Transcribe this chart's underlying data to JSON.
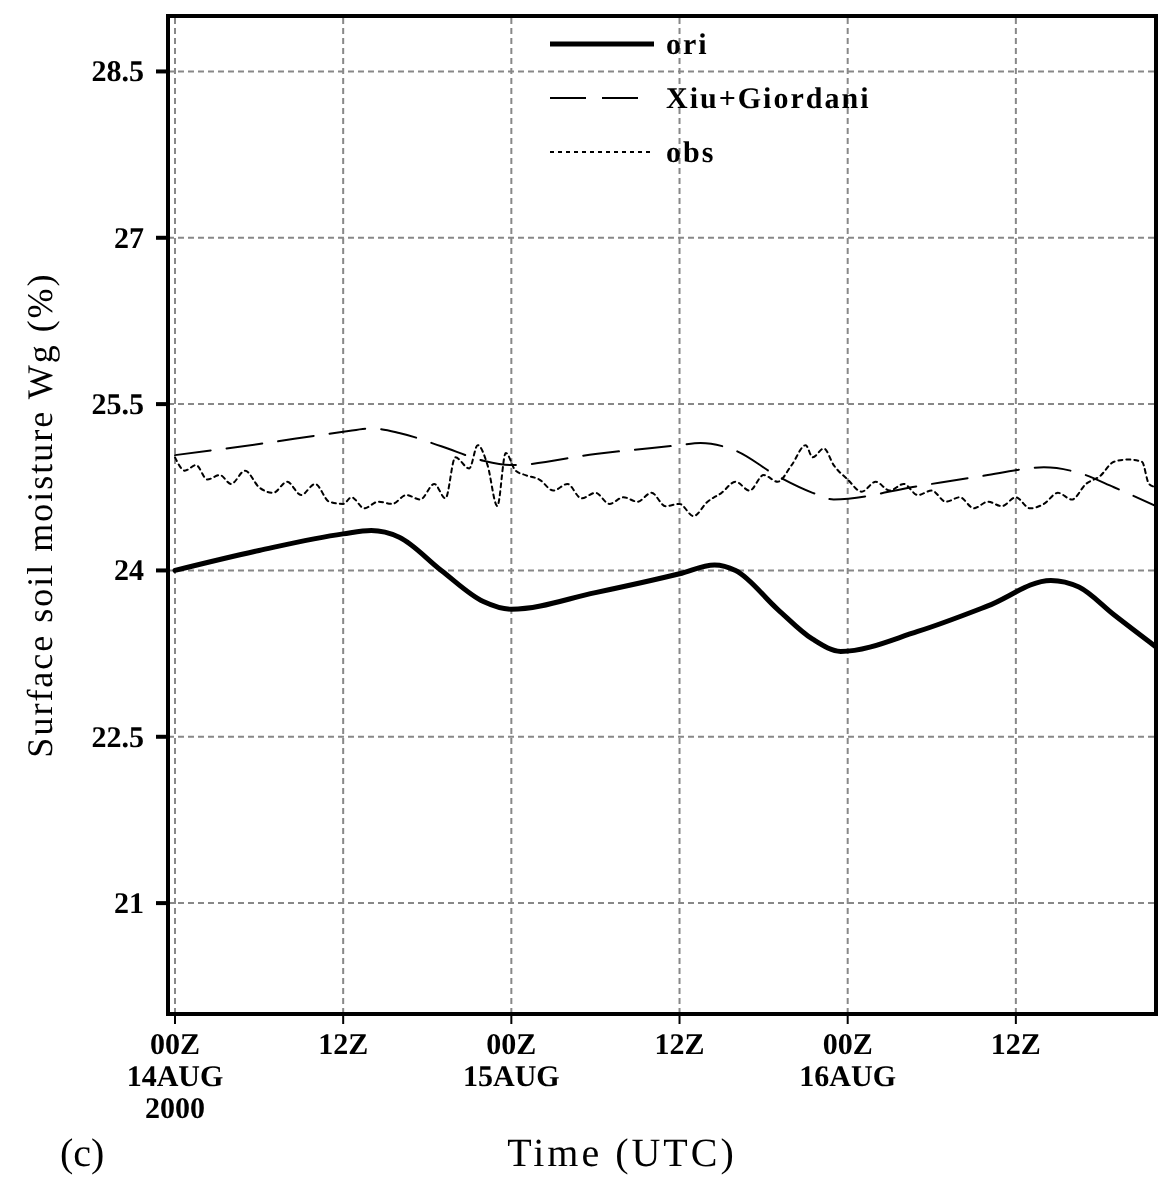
{
  "chart_data": {
    "type": "line",
    "xlabel": "Time (UTC)",
    "ylabel": "Surface soil moisture Wg (%)",
    "annotations": [
      "(c)"
    ],
    "xlim": [
      "2000-08-13T23:30",
      "2000-08-16T22:00"
    ],
    "ylim": [
      20,
      29
    ],
    "xticks": [
      {
        "value": "2000-08-14T00:00",
        "label": "00Z\n14AUG\n2000"
      },
      {
        "value": "2000-08-14T12:00",
        "label": "12Z"
      },
      {
        "value": "2000-08-15T00:00",
        "label": "00Z\n15AUG"
      },
      {
        "value": "2000-08-15T12:00",
        "label": "12Z"
      },
      {
        "value": "2000-08-16T00:00",
        "label": "00Z\n16AUG"
      },
      {
        "value": "2000-08-16T12:00",
        "label": "12Z"
      }
    ],
    "yticks": [
      21,
      22.5,
      24,
      25.5,
      27,
      28.5
    ],
    "grid": true,
    "legend": "top",
    "marker": "none",
    "series": [
      {
        "name": "ori",
        "color": "#000000",
        "line_style": "solid",
        "x": [
          "2000-08-14T00:00",
          "2000-08-14T06:00",
          "2000-08-14T12:00",
          "2000-08-14T14:00",
          "2000-08-14T16:00",
          "2000-08-14T19:00",
          "2000-08-14T22:00",
          "2000-08-15T00:00",
          "2000-08-15T06:00",
          "2000-08-15T12:00",
          "2000-08-15T14:30",
          "2000-08-15T16:00",
          "2000-08-15T19:00",
          "2000-08-15T21:30",
          "2000-08-15T23:30",
          "2000-08-16T05:00",
          "2000-08-16T10:00",
          "2000-08-16T14:30",
          "2000-08-16T16:30",
          "2000-08-16T19:00",
          "2000-08-16T22:00"
        ],
        "values": [
          24.0,
          24.18,
          24.33,
          24.36,
          24.3,
          24.0,
          23.72,
          23.65,
          23.8,
          23.97,
          24.05,
          24.0,
          23.65,
          23.38,
          23.27,
          23.45,
          23.68,
          23.91,
          23.85,
          23.6,
          23.31
        ]
      },
      {
        "name": "Xiu+Giordani",
        "color": "#000000",
        "line_style": "dashed",
        "x": [
          "2000-08-14T00:00",
          "2000-08-14T06:00",
          "2000-08-14T12:00",
          "2000-08-14T14:00",
          "2000-08-14T16:00",
          "2000-08-14T19:00",
          "2000-08-14T22:00",
          "2000-08-15T00:00",
          "2000-08-15T06:00",
          "2000-08-15T12:00",
          "2000-08-15T13:30",
          "2000-08-15T16:00",
          "2000-08-15T19:00",
          "2000-08-15T21:30",
          "2000-08-15T23:00",
          "2000-08-16T05:00",
          "2000-08-16T10:00",
          "2000-08-16T14:00",
          "2000-08-16T16:30",
          "2000-08-16T19:00",
          "2000-08-16T22:00"
        ],
        "values": [
          25.04,
          25.14,
          25.25,
          25.28,
          25.24,
          25.12,
          24.99,
          24.95,
          25.05,
          25.13,
          25.15,
          25.08,
          24.85,
          24.7,
          24.64,
          24.76,
          24.86,
          24.93,
          24.88,
          24.75,
          24.58
        ]
      },
      {
        "name": "obs",
        "color": "#000000",
        "line_style": "dotted",
        "x": [
          "2000-08-14T00:00",
          "2000-08-14T00:42",
          "2000-08-14T01:30",
          "2000-08-14T02:18",
          "2000-08-14T03:12",
          "2000-08-14T04:00",
          "2000-08-14T05:00",
          "2000-08-14T06:00",
          "2000-08-14T07:00",
          "2000-08-14T08:00",
          "2000-08-14T09:00",
          "2000-08-14T10:00",
          "2000-08-14T11:00",
          "2000-08-14T12:00",
          "2000-08-14T12:36",
          "2000-08-14T13:30",
          "2000-08-14T14:30",
          "2000-08-14T15:30",
          "2000-08-14T16:30",
          "2000-08-14T17:30",
          "2000-08-14T18:30",
          "2000-08-14T19:18",
          "2000-08-14T20:00",
          "2000-08-14T21:00",
          "2000-08-14T21:36",
          "2000-08-14T22:18",
          "2000-08-14T23:00",
          "2000-08-14T23:36",
          "2000-08-15T00:18",
          "2000-08-15T01:00",
          "2000-08-15T02:00",
          "2000-08-15T03:00",
          "2000-08-15T04:00",
          "2000-08-15T05:00",
          "2000-08-15T06:00",
          "2000-08-15T07:00",
          "2000-08-15T08:00",
          "2000-08-15T09:00",
          "2000-08-15T10:00",
          "2000-08-15T11:00",
          "2000-08-15T12:00",
          "2000-08-15T13:00",
          "2000-08-15T14:00",
          "2000-08-15T15:00",
          "2000-08-15T16:00",
          "2000-08-15T17:00",
          "2000-08-15T18:00",
          "2000-08-15T19:00",
          "2000-08-15T20:00",
          "2000-08-15T21:00",
          "2000-08-15T21:30",
          "2000-08-15T22:18",
          "2000-08-15T23:00",
          "2000-08-16T00:00",
          "2000-08-16T01:00",
          "2000-08-16T02:00",
          "2000-08-16T03:00",
          "2000-08-16T04:00",
          "2000-08-16T05:00",
          "2000-08-16T06:00",
          "2000-08-16T07:00",
          "2000-08-16T08:00",
          "2000-08-16T09:00",
          "2000-08-16T10:00",
          "2000-08-16T11:00",
          "2000-08-16T12:00",
          "2000-08-16T13:00",
          "2000-08-16T14:00",
          "2000-08-16T15:00",
          "2000-08-16T16:00",
          "2000-08-16T17:00",
          "2000-08-16T18:00",
          "2000-08-16T19:00",
          "2000-08-16T20:00",
          "2000-08-16T21:00",
          "2000-08-16T21:30",
          "2000-08-16T22:00"
        ],
        "values": [
          25.02,
          24.9,
          24.95,
          24.82,
          24.86,
          24.78,
          24.9,
          24.75,
          24.7,
          24.8,
          24.68,
          24.78,
          24.62,
          24.6,
          24.66,
          24.56,
          24.62,
          24.6,
          24.68,
          24.64,
          24.78,
          24.65,
          25.02,
          24.92,
          25.13,
          24.95,
          24.58,
          25.06,
          24.9,
          24.86,
          24.82,
          24.72,
          24.78,
          24.65,
          24.7,
          24.6,
          24.66,
          24.62,
          24.7,
          24.58,
          24.6,
          24.49,
          24.62,
          24.7,
          24.8,
          24.72,
          24.86,
          24.8,
          24.95,
          25.13,
          25.02,
          25.1,
          24.95,
          24.82,
          24.71,
          24.8,
          24.72,
          24.78,
          24.68,
          24.72,
          24.62,
          24.66,
          24.56,
          24.62,
          24.58,
          24.66,
          24.56,
          24.6,
          24.7,
          24.64,
          24.78,
          24.85,
          24.98,
          25.0,
          24.98,
          24.78,
          24.75
        ]
      }
    ]
  }
}
